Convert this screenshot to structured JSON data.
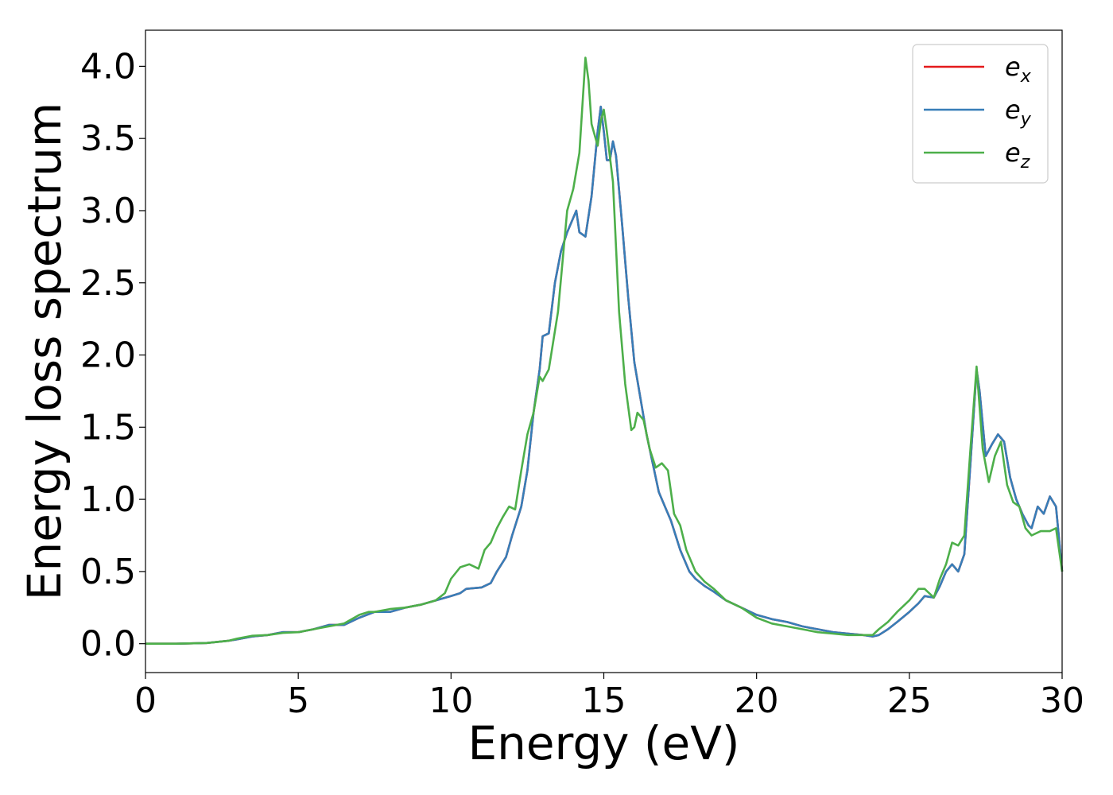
{
  "chart_data": {
    "type": "line",
    "title": "",
    "xlabel": "Energy (eV)",
    "ylabel": "Energy loss spectrum",
    "xlim": [
      0,
      30
    ],
    "ylim": [
      -0.2,
      4.25
    ],
    "xticks": [
      0,
      5,
      10,
      15,
      20,
      25,
      30
    ],
    "xtick_labels": [
      "0",
      "5",
      "10",
      "15",
      "20",
      "25",
      "30"
    ],
    "yticks": [
      0.0,
      0.5,
      1.0,
      1.5,
      2.0,
      2.5,
      3.0,
      3.5,
      4.0
    ],
    "ytick_labels": [
      "0.0",
      "0.5",
      "1.0",
      "1.5",
      "2.0",
      "2.5",
      "3.0",
      "3.5",
      "4.0"
    ],
    "grid": false,
    "legend_position": "top-right",
    "colors": {
      "ex": "#e41a1c",
      "ey": "#377eb8",
      "ez": "#4daf4a"
    },
    "series": [
      {
        "name": "e_x",
        "label_main": "e",
        "label_sub": "x",
        "color": "#e41a1c",
        "x": [
          0,
          1,
          2,
          2.7,
          3,
          3.5,
          4,
          4.5,
          5,
          5.5,
          6,
          6.5,
          7,
          7.5,
          8,
          8.5,
          9,
          9.5,
          10,
          10.3,
          10.5,
          11,
          11.3,
          11.5,
          11.8,
          12,
          12.3,
          12.5,
          12.7,
          12.9,
          13.0,
          13.2,
          13.4,
          13.6,
          13.8,
          14.0,
          14.1,
          14.2,
          14.4,
          14.6,
          14.8,
          14.9,
          15.0,
          15.1,
          15.2,
          15.3,
          15.4,
          15.6,
          15.8,
          16.0,
          16.2,
          16.4,
          16.6,
          16.8,
          17.0,
          17.2,
          17.5,
          17.8,
          18.0,
          18.3,
          18.6,
          19.0,
          19.5,
          20,
          20.5,
          21,
          21.5,
          22,
          22.5,
          23,
          23.5,
          23.8,
          24,
          24.3,
          24.6,
          25,
          25.3,
          25.5,
          25.8,
          26.0,
          26.2,
          26.4,
          26.6,
          26.8,
          27.0,
          27.2,
          27.3,
          27.5,
          27.7,
          27.9,
          28.1,
          28.3,
          28.5,
          28.7,
          28.9,
          29.0,
          29.2,
          29.4,
          29.6,
          29.8,
          30
        ],
        "y": [
          0,
          0,
          0.005,
          0.02,
          0.03,
          0.05,
          0.06,
          0.08,
          0.08,
          0.1,
          0.13,
          0.13,
          0.18,
          0.22,
          0.22,
          0.25,
          0.27,
          0.3,
          0.33,
          0.35,
          0.38,
          0.39,
          0.42,
          0.5,
          0.6,
          0.75,
          0.95,
          1.2,
          1.6,
          1.9,
          2.13,
          2.15,
          2.5,
          2.72,
          2.85,
          2.95,
          3.0,
          2.85,
          2.82,
          3.1,
          3.55,
          3.72,
          3.55,
          3.35,
          3.35,
          3.48,
          3.38,
          2.9,
          2.4,
          1.95,
          1.7,
          1.45,
          1.25,
          1.05,
          0.95,
          0.85,
          0.65,
          0.5,
          0.45,
          0.4,
          0.36,
          0.3,
          0.25,
          0.2,
          0.17,
          0.15,
          0.12,
          0.1,
          0.08,
          0.07,
          0.06,
          0.05,
          0.06,
          0.1,
          0.15,
          0.22,
          0.28,
          0.33,
          0.32,
          0.4,
          0.5,
          0.55,
          0.5,
          0.62,
          1.25,
          1.9,
          1.75,
          1.3,
          1.38,
          1.45,
          1.4,
          1.15,
          1.0,
          0.9,
          0.82,
          0.8,
          0.95,
          0.9,
          1.02,
          0.95,
          0.5
        ]
      },
      {
        "name": "e_y",
        "label_main": "e",
        "label_sub": "y",
        "color": "#377eb8",
        "x": [
          0,
          1,
          2,
          2.7,
          3,
          3.5,
          4,
          4.5,
          5,
          5.5,
          6,
          6.5,
          7,
          7.5,
          8,
          8.5,
          9,
          9.5,
          10,
          10.3,
          10.5,
          11,
          11.3,
          11.5,
          11.8,
          12,
          12.3,
          12.5,
          12.7,
          12.9,
          13.0,
          13.2,
          13.4,
          13.6,
          13.8,
          14.0,
          14.1,
          14.2,
          14.4,
          14.6,
          14.8,
          14.9,
          15.0,
          15.1,
          15.2,
          15.3,
          15.4,
          15.6,
          15.8,
          16.0,
          16.2,
          16.4,
          16.6,
          16.8,
          17.0,
          17.2,
          17.5,
          17.8,
          18.0,
          18.3,
          18.6,
          19.0,
          19.5,
          20,
          20.5,
          21,
          21.5,
          22,
          22.5,
          23,
          23.5,
          23.8,
          24,
          24.3,
          24.6,
          25,
          25.3,
          25.5,
          25.8,
          26.0,
          26.2,
          26.4,
          26.6,
          26.8,
          27.0,
          27.2,
          27.3,
          27.5,
          27.7,
          27.9,
          28.1,
          28.3,
          28.5,
          28.7,
          28.9,
          29.0,
          29.2,
          29.4,
          29.6,
          29.8,
          30
        ],
        "y": [
          0,
          0,
          0.005,
          0.02,
          0.03,
          0.05,
          0.06,
          0.08,
          0.08,
          0.1,
          0.13,
          0.13,
          0.18,
          0.22,
          0.22,
          0.25,
          0.27,
          0.3,
          0.33,
          0.35,
          0.38,
          0.39,
          0.42,
          0.5,
          0.6,
          0.75,
          0.95,
          1.2,
          1.6,
          1.9,
          2.13,
          2.15,
          2.5,
          2.72,
          2.85,
          2.95,
          3.0,
          2.85,
          2.82,
          3.1,
          3.55,
          3.72,
          3.55,
          3.35,
          3.35,
          3.48,
          3.38,
          2.9,
          2.4,
          1.95,
          1.7,
          1.45,
          1.25,
          1.05,
          0.95,
          0.85,
          0.65,
          0.5,
          0.45,
          0.4,
          0.36,
          0.3,
          0.25,
          0.2,
          0.17,
          0.15,
          0.12,
          0.1,
          0.08,
          0.07,
          0.06,
          0.05,
          0.06,
          0.1,
          0.15,
          0.22,
          0.28,
          0.33,
          0.32,
          0.4,
          0.5,
          0.55,
          0.5,
          0.62,
          1.25,
          1.9,
          1.75,
          1.3,
          1.38,
          1.45,
          1.4,
          1.15,
          1.0,
          0.9,
          0.82,
          0.8,
          0.95,
          0.9,
          1.02,
          0.95,
          0.5
        ]
      },
      {
        "name": "e_z",
        "label_main": "e",
        "label_sub": "z",
        "color": "#4daf4a",
        "x": [
          0,
          1,
          2,
          2.7,
          3,
          3.5,
          4,
          4.5,
          5,
          5.5,
          6,
          6.5,
          7,
          7.3,
          7.5,
          8,
          8.5,
          9,
          9.5,
          9.8,
          10,
          10.3,
          10.6,
          10.9,
          11.1,
          11.3,
          11.5,
          11.7,
          11.9,
          12.1,
          12.3,
          12.5,
          12.7,
          12.9,
          13.0,
          13.2,
          13.5,
          13.8,
          14.0,
          14.2,
          14.4,
          14.5,
          14.6,
          14.8,
          14.9,
          15.0,
          15.1,
          15.3,
          15.5,
          15.7,
          15.9,
          16.0,
          16.1,
          16.3,
          16.5,
          16.7,
          16.9,
          17.1,
          17.3,
          17.5,
          17.7,
          18.0,
          18.3,
          18.6,
          19.0,
          19.5,
          20,
          20.5,
          21,
          21.5,
          22,
          22.5,
          23,
          23.5,
          23.8,
          24,
          24.3,
          24.6,
          25,
          25.3,
          25.5,
          25.8,
          26.0,
          26.2,
          26.4,
          26.6,
          26.8,
          27.0,
          27.2,
          27.4,
          27.6,
          27.8,
          28.0,
          28.2,
          28.4,
          28.6,
          28.8,
          29.0,
          29.3,
          29.6,
          29.8,
          30
        ],
        "y": [
          0,
          0,
          0.005,
          0.02,
          0.035,
          0.055,
          0.06,
          0.075,
          0.08,
          0.1,
          0.12,
          0.14,
          0.2,
          0.22,
          0.22,
          0.24,
          0.25,
          0.27,
          0.3,
          0.35,
          0.45,
          0.53,
          0.55,
          0.52,
          0.65,
          0.7,
          0.8,
          0.88,
          0.95,
          0.93,
          1.2,
          1.45,
          1.6,
          1.85,
          1.82,
          1.9,
          2.3,
          3.0,
          3.15,
          3.4,
          4.06,
          3.9,
          3.6,
          3.45,
          3.62,
          3.7,
          3.55,
          3.2,
          2.3,
          1.8,
          1.48,
          1.5,
          1.6,
          1.55,
          1.35,
          1.22,
          1.25,
          1.2,
          0.9,
          0.82,
          0.65,
          0.5,
          0.43,
          0.38,
          0.3,
          0.25,
          0.18,
          0.14,
          0.12,
          0.1,
          0.08,
          0.07,
          0.06,
          0.06,
          0.06,
          0.1,
          0.15,
          0.22,
          0.3,
          0.38,
          0.38,
          0.32,
          0.45,
          0.55,
          0.7,
          0.68,
          0.75,
          1.35,
          1.92,
          1.35,
          1.12,
          1.3,
          1.4,
          1.1,
          0.98,
          0.95,
          0.8,
          0.75,
          0.78,
          0.78,
          0.8,
          0.5
        ]
      }
    ]
  }
}
